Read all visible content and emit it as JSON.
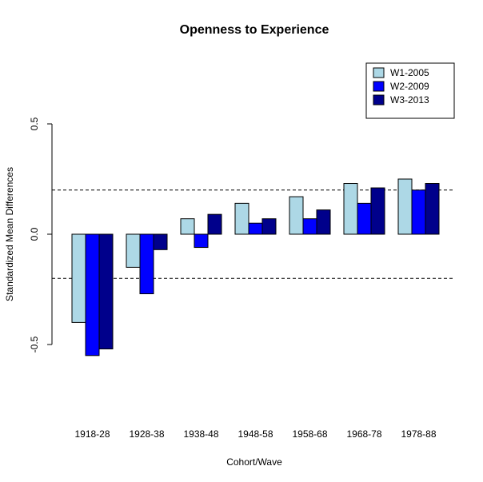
{
  "chart_data": {
    "type": "bar",
    "title": "Openness to Experience",
    "xlabel": "Cohort/Wave",
    "ylabel": "Standardized Mean Differences",
    "categories": [
      "1918-28",
      "1928-38",
      "1938-48",
      "1948-58",
      "1958-68",
      "1968-78",
      "1978-88"
    ],
    "series": [
      {
        "name": "W1-2005",
        "color": "#add8e6",
        "values": [
          -0.4,
          -0.15,
          0.07,
          0.14,
          0.17,
          0.23,
          0.25
        ]
      },
      {
        "name": "W2-2009",
        "color": "#0000ff",
        "values": [
          -0.55,
          -0.27,
          -0.06,
          0.05,
          0.07,
          0.14,
          0.2
        ]
      },
      {
        "name": "W3-2013",
        "color": "#00008b",
        "values": [
          -0.52,
          -0.07,
          0.09,
          0.07,
          0.11,
          0.21,
          0.23
        ]
      }
    ],
    "yticks": [
      {
        "value": -0.5,
        "label": "-0.5"
      },
      {
        "value": 0.0,
        "label": "0.0"
      },
      {
        "value": 0.5,
        "label": "0.5"
      }
    ],
    "reference_lines": [
      0.2,
      -0.2
    ],
    "legend_position": "top-right",
    "grid": false
  }
}
